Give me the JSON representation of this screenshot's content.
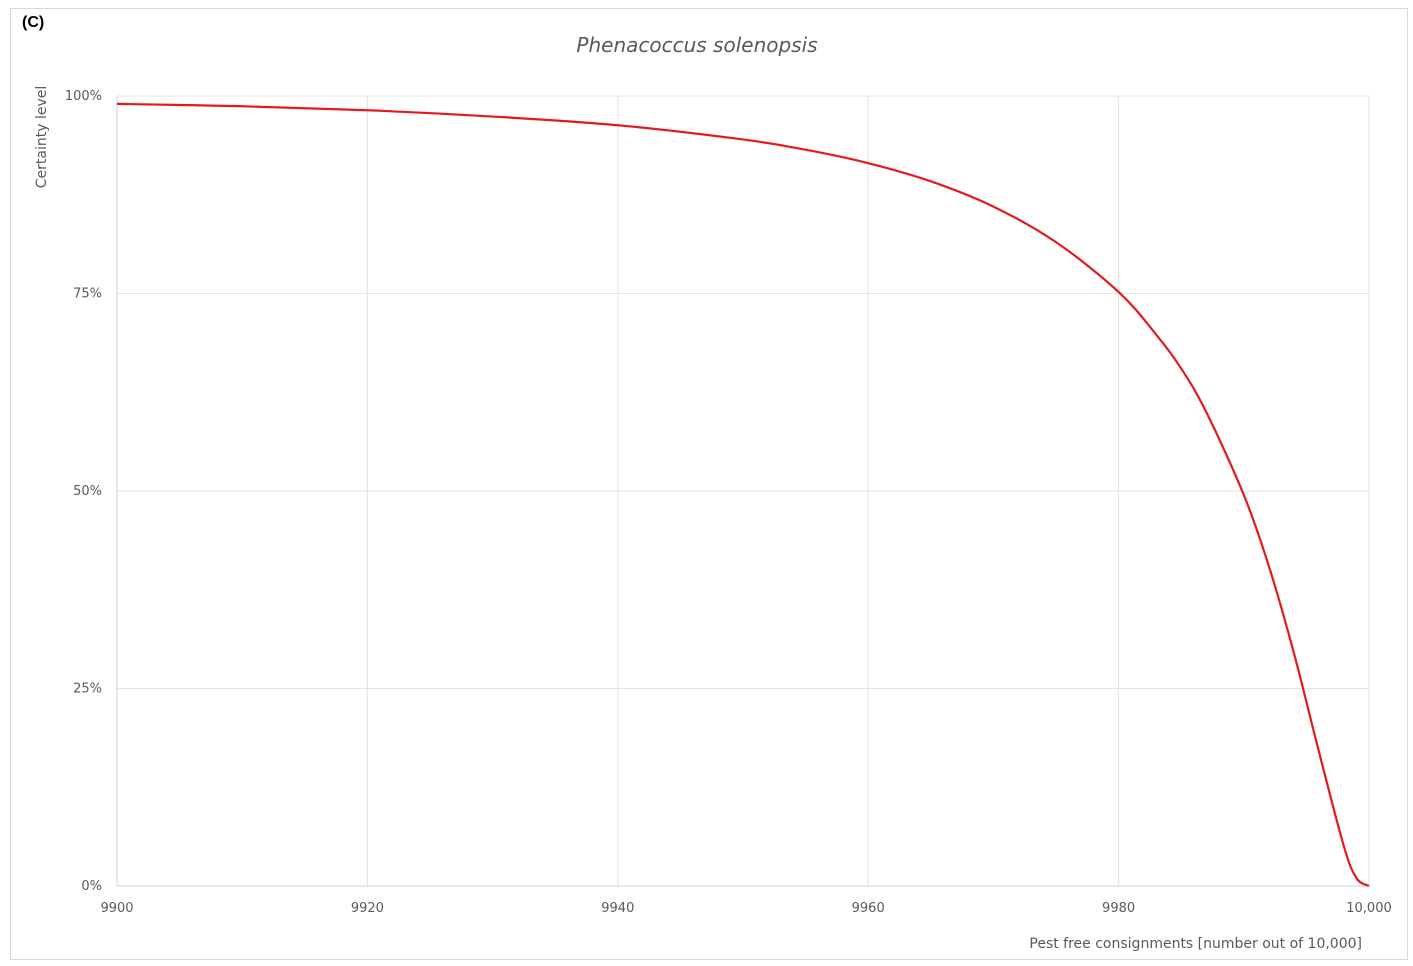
{
  "panel_label": "(C)",
  "chart_data": {
    "type": "line",
    "title": "Phenacoccus solenopsis",
    "xlabel": "Pest free consignments [number out of 10,000]",
    "ylabel": "Certainty level",
    "xlim": [
      9900,
      10000
    ],
    "ylim": [
      0,
      100
    ],
    "x_ticks": [
      9900,
      9920,
      9940,
      9960,
      9980,
      10000
    ],
    "x_tick_labels": [
      "9900",
      "9920",
      "9940",
      "9960",
      "9980",
      "10,000"
    ],
    "y_ticks": [
      0,
      25,
      50,
      75,
      100
    ],
    "y_tick_labels": [
      "0%",
      "25%",
      "50%",
      "75%",
      "100%"
    ],
    "grid": true,
    "legend": "none",
    "series_color": "#e31a1c",
    "series": [
      {
        "x": [
          9900,
          9910,
          9920,
          9930,
          9940,
          9950,
          9955,
          9960,
          9965,
          9970,
          9975,
          9980,
          9983,
          9985,
          9987,
          9990,
          9992,
          9994,
          9996,
          9998,
          9999,
          10000
        ],
        "values": [
          99.0,
          98.7,
          98.2,
          97.4,
          96.3,
          94.5,
          93.2,
          91.5,
          89.2,
          86.0,
          81.5,
          75.2,
          69.8,
          65.5,
          60.0,
          49.5,
          40.5,
          29.5,
          17.0,
          5.0,
          1.0,
          0.0
        ]
      }
    ]
  }
}
